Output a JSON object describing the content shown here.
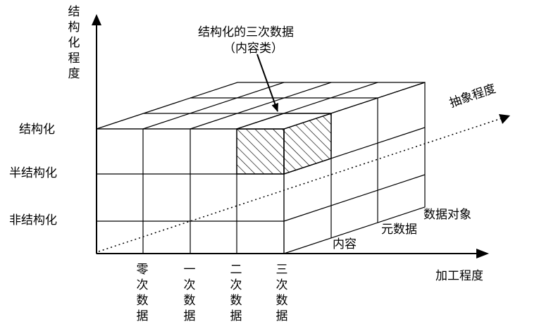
{
  "y_axis": {
    "title": "结构化程度"
  },
  "x_axis": {
    "title": "加工程度"
  },
  "z_axis": {
    "title": "抽象程度"
  },
  "structure_levels": [
    "结构化",
    "半结构化",
    "非结构化"
  ],
  "processing_levels": [
    "零次数据",
    "一次数据",
    "二次数据",
    "三次数据"
  ],
  "abstraction_levels": [
    "内容",
    "元数据",
    "数据对象"
  ],
  "callout": {
    "line1": "结构化的三次数据",
    "line2": "（内容类）"
  }
}
